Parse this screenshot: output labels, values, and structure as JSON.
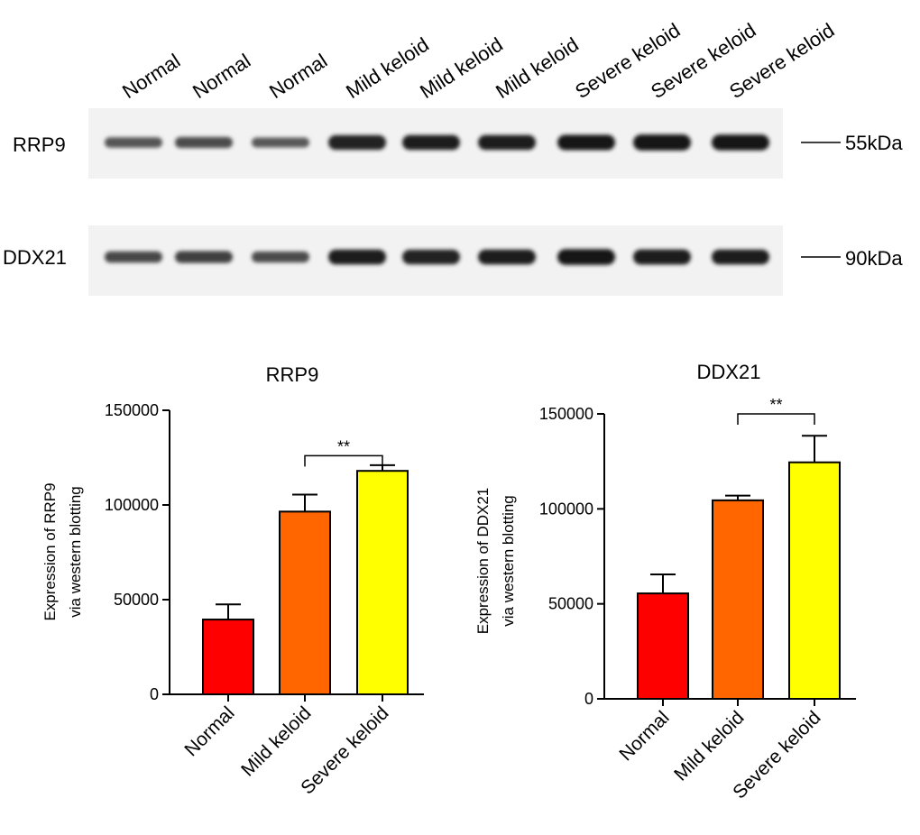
{
  "blot": {
    "lanes": [
      "Normal",
      "Normal",
      "Normal",
      "Mild keloid",
      "Mild keloid",
      "Mild keloid",
      "Severe keloid",
      "Severe keloid",
      "Severe keloid"
    ],
    "rows": [
      {
        "label": "RRP9",
        "marker": "55kDa",
        "band_intensity": [
          0.45,
          0.52,
          0.42,
          0.85,
          0.88,
          0.88,
          0.92,
          0.97,
          0.95
        ]
      },
      {
        "label": "DDX21",
        "marker": "90kDa",
        "band_intensity": [
          0.55,
          0.6,
          0.52,
          0.88,
          0.85,
          0.87,
          0.95,
          0.9,
          0.88
        ]
      }
    ]
  },
  "chart_data": [
    {
      "type": "bar",
      "title": "RRP9",
      "ylabel": [
        "Expression of RRP9",
        "via western blotting"
      ],
      "xlabel": "",
      "categories": [
        "Normal",
        "Mild keloid",
        "Severe keloid"
      ],
      "values": [
        39500,
        96500,
        118000
      ],
      "errors": [
        8000,
        9000,
        3000
      ],
      "colors": [
        "#ff0000",
        "#ff6600",
        "#ffff00"
      ],
      "ylim": [
        0,
        150000
      ],
      "yticks": [
        "0",
        "50000",
        "100000",
        "150000"
      ],
      "significance": {
        "between": [
          1,
          2
        ],
        "label": "**",
        "value": 126000
      }
    },
    {
      "type": "bar",
      "title": "DDX21",
      "ylabel": [
        "Expression of DDX21",
        "via western blotting"
      ],
      "xlabel": "",
      "categories": [
        "Normal",
        "Mild keloid",
        "Severe keloid"
      ],
      "values": [
        55500,
        104500,
        124500
      ],
      "errors": [
        10000,
        2500,
        14000
      ],
      "colors": [
        "#ff0000",
        "#ff6600",
        "#ffff00"
      ],
      "ylim": [
        0,
        150000
      ],
      "yticks": [
        "0",
        "50000",
        "100000",
        "150000"
      ],
      "significance": {
        "between": [
          1,
          2
        ],
        "label": "**",
        "value": 150000
      }
    }
  ]
}
